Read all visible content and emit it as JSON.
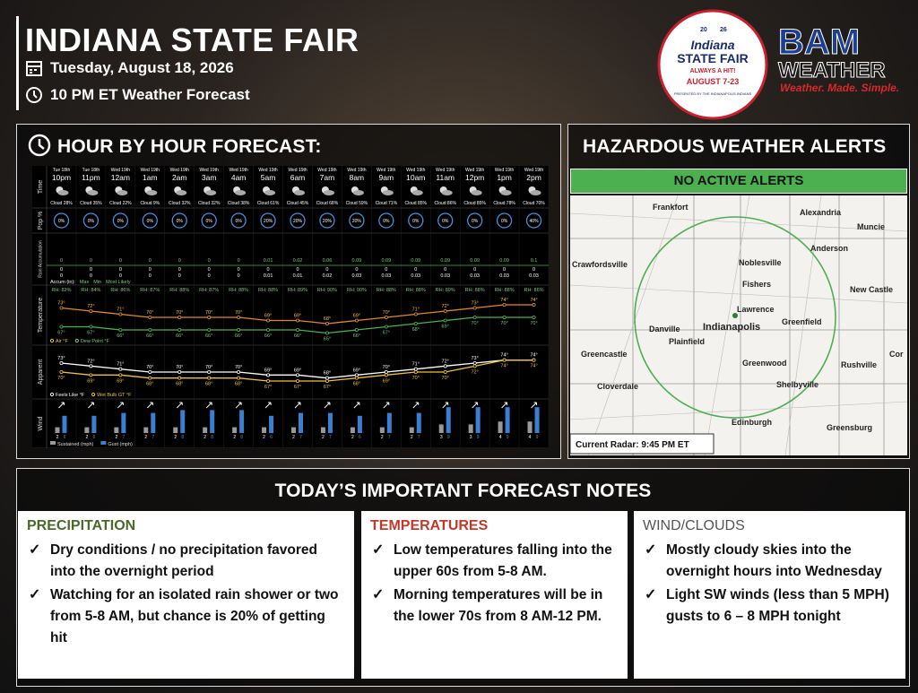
{
  "header": {
    "title": "INDIANA STATE FAIR",
    "date": "Tuesday, August 18, 2026",
    "time": "10 PM ET Weather Forecast"
  },
  "fair_logo": {
    "year_left": "20",
    "year_right": "26",
    "name": "Indiana",
    "subname": "STATE FAIR",
    "tagline": "ALWAYS A HIT!",
    "dates": "AUGUST 7-23",
    "presenter": "PRESENTED BY THE INDIANAPOLIS INDIANS"
  },
  "bam_logo": {
    "name": "BAM",
    "sub": "WEATHER",
    "tagline": "Weather. Made. Simple."
  },
  "hourly": {
    "title": "HOUR BY HOUR FORECAST:",
    "row_labels": [
      "Time",
      "Pop %",
      "Rain Accumulation",
      "Temperature",
      "Apparent",
      "Wind"
    ],
    "dates": [
      "Tue 18th",
      "Tue 18th",
      "Wed 19th",
      "Wed 19th",
      "Wed 19th",
      "Wed 19th",
      "Wed 19th",
      "Wed 19th",
      "Wed 19th",
      "Wed 19th",
      "Wed 19th",
      "Wed 19th",
      "Wed 19th",
      "Wed 19th",
      "Wed 19th",
      "Wed 19th",
      "Wed 19th"
    ],
    "times": [
      "10pm",
      "11pm",
      "12am",
      "1am",
      "2am",
      "3am",
      "4am",
      "5am",
      "6am",
      "7am",
      "8am",
      "9am",
      "10am",
      "11am",
      "12pm",
      "1pm",
      "2pm"
    ],
    "clouds": [
      "Cloud 28%",
      "Cloud 35%",
      "Cloud 22%",
      "Cloud 9%",
      "Cloud 32%",
      "Cloud 32%",
      "Cloud 38%",
      "Cloud 61%",
      "Cloud 45%",
      "Cloud 68%",
      "Cloud 59%",
      "Cloud 71%",
      "Cloud 85%",
      "Cloud 86%",
      "Cloud 85%",
      "Cloud 78%",
      "Cloud 70%"
    ],
    "pop": [
      "0%",
      "0%",
      "0%",
      "0%",
      "0%",
      "0%",
      "0%",
      "20%",
      "20%",
      "20%",
      "20%",
      "0%",
      "0%",
      "0%",
      "0%",
      "0%",
      "40%"
    ],
    "rain_max": [
      "0",
      "0",
      "0",
      "0",
      "0",
      "0",
      "0",
      "0.01",
      "0.02",
      "0.06",
      "0.09",
      "0.09",
      "0.09",
      "0.09",
      "0.09",
      "0.09",
      "0.1"
    ],
    "rain_min": [
      "0",
      "0",
      "0",
      "0",
      "0",
      "0",
      "0",
      "0",
      "0",
      "0",
      "0",
      "0",
      "0",
      "0",
      "0",
      "0",
      "0"
    ],
    "rain_likely": [
      "0",
      "0",
      "0",
      "0",
      "0",
      "0",
      "0",
      "0.01",
      "0.01",
      "0.02",
      "0.03",
      "0.03",
      "0.03",
      "0.03",
      "0.03",
      "0.03",
      "0.03"
    ],
    "accum_legend": [
      "Accum (in):",
      "Max",
      "Min",
      "Most Likely"
    ],
    "rh": [
      "RH: 82%",
      "RH: 84%",
      "RH: 86%",
      "RH: 87%",
      "RH: 88%",
      "RH: 87%",
      "RH: 88%",
      "RH: 88%",
      "RH: 89%",
      "RH: 90%",
      "RH: 90%",
      "RH: 88%",
      "RH: 88%",
      "RH: 89%",
      "RH: 88%",
      "RH: 88%",
      "RH: 86%"
    ],
    "air": [
      "73°",
      "72°",
      "71°",
      "70°",
      "70°",
      "70°",
      "70°",
      "69°",
      "69°",
      "68°",
      "69°",
      "70°",
      "71°",
      "72°",
      "73°",
      "74°",
      "74°"
    ],
    "dew": [
      "67°",
      "67°",
      "66°",
      "66°",
      "66°",
      "66°",
      "66°",
      "66°",
      "66°",
      "65°",
      "66°",
      "67°",
      "68°",
      "69°",
      "70°",
      "70°",
      "70°"
    ],
    "temp_legend": [
      "Air °F",
      "Dew Point °F"
    ],
    "feels": [
      "73°",
      "72°",
      "71°",
      "70°",
      "70°",
      "70°",
      "70°",
      "69°",
      "69°",
      "68°",
      "69°",
      "70°",
      "71°",
      "72°",
      "73°",
      "74°",
      "74°"
    ],
    "wetbulb": [
      "70°",
      "69°",
      "69°",
      "68°",
      "68°",
      "68°",
      "68°",
      "67°",
      "67°",
      "67°",
      "68°",
      "69°",
      "70°",
      "70°",
      "72°",
      "74°",
      "74°"
    ],
    "apparent_legend": [
      "Feels Like °F",
      "Wet Bulb GT °F"
    ],
    "wind_sustained": [
      2,
      2,
      2,
      2,
      2,
      2,
      2,
      2,
      2,
      2,
      2,
      2,
      2,
      3,
      3,
      4,
      4
    ],
    "wind_gust": [
      6,
      6,
      7,
      7,
      8,
      8,
      8,
      6,
      7,
      7,
      6,
      7,
      7,
      9,
      9,
      9,
      9
    ],
    "wind_legend": [
      "Sustained (mph)",
      "Gust (mph)"
    ]
  },
  "alerts": {
    "title": "HAZARDOUS WEATHER ALERTS",
    "status": "NO ACTIVE ALERTS",
    "radar": "Current Radar: 9:45 PM ET",
    "cities": [
      "Frankfort",
      "Alexandria",
      "Muncie",
      "Anderson",
      "Crawfordsville",
      "Noblesville",
      "Fishers",
      "New Castle",
      "Lawrence",
      "Greenfield",
      "Danville",
      "Indianapolis",
      "Plainfield",
      "Greencastle",
      "Greenwood",
      "Rushville",
      "Cor",
      "Cloverdale",
      "Shelbyville",
      "Edinburgh",
      "Greensburg"
    ]
  },
  "notes": {
    "title": "TODAY’S IMPORTANT FORECAST NOTES",
    "sections": [
      {
        "heading": "PRECIPITATION",
        "bullets": [
          "Dry conditions / no precipitation favored into the overnight period",
          "Watching for an isolated rain shower or two from 5-8 AM, but chance is 20% of getting hit"
        ]
      },
      {
        "heading": "TEMPERATURES",
        "bullets": [
          "Low temperatures falling into the upper 60s from 5-8 AM.",
          "Morning temperatures will be in the lower 70s from 8 AM-12 PM."
        ]
      },
      {
        "heading": "WIND/CLOUDS",
        "bullets": [
          "Mostly cloudy skies into the overnight hours into Wednesday",
          "Light SW winds (less than 5 MPH) gusts to 6 – 8 MPH tonight"
        ]
      }
    ]
  }
}
